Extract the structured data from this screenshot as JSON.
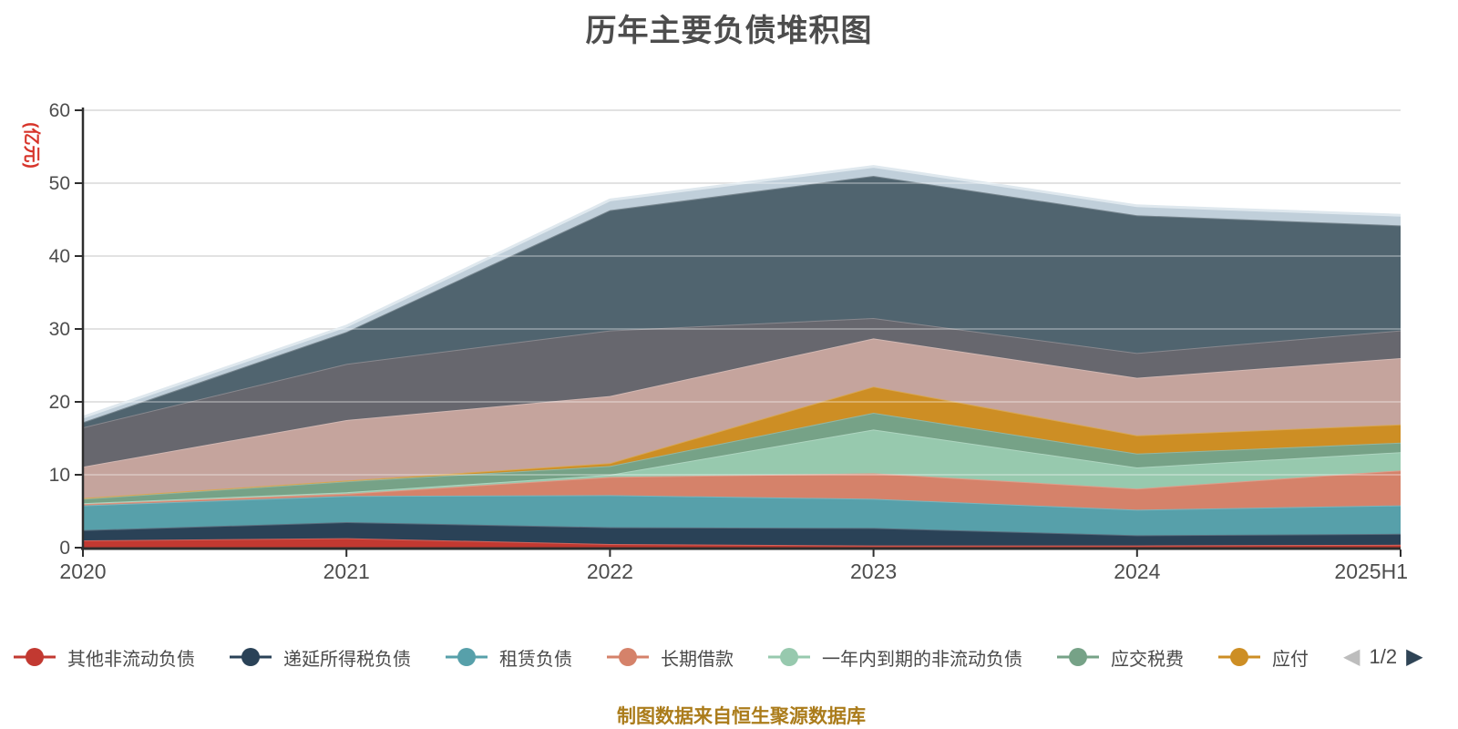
{
  "title": "历年主要负债堆积图",
  "y_axis": {
    "name": "(亿元)",
    "name_color": "#d7342a",
    "tick_labels": [
      "0",
      "10",
      "20",
      "30",
      "40",
      "50",
      "60"
    ],
    "tick_values": [
      0,
      10,
      20,
      30,
      40,
      50,
      60
    ],
    "max": 60
  },
  "x_axis": {
    "categories": [
      "2020",
      "2021",
      "2022",
      "2023",
      "2024",
      "2025H1"
    ]
  },
  "legend": {
    "prev_icon": "◀",
    "next_icon": "▶",
    "page_indicator": "1/2",
    "prev_color": "#bdbdbd",
    "next_color": "#2f4456"
  },
  "footer": {
    "text": "制图数据来自恒生聚源数据库",
    "color": "#ab7c1b"
  },
  "chart_data": {
    "type": "area",
    "stacked": true,
    "title": "历年主要负债堆积图",
    "ylabel": "(亿元)",
    "ylim": [
      0,
      60
    ],
    "grid": true,
    "legend_position": "bottom",
    "categories": [
      "2020",
      "2021",
      "2022",
      "2023",
      "2024",
      "2025H1"
    ],
    "totals": [
      17.9,
      30.4,
      47.7,
      52.3,
      46.9,
      45.6
    ],
    "series": [
      {
        "label": "其他非流动负债",
        "legend_page": 1,
        "color": "#c23931",
        "values": [
          1.0,
          1.3,
          0.5,
          0.3,
          0.3,
          0.4
        ]
      },
      {
        "label": "递延所得税负债",
        "legend_page": 1,
        "color": "#2a4257",
        "values": [
          1.4,
          2.2,
          2.3,
          2.4,
          1.4,
          1.5
        ]
      },
      {
        "label": "租赁负债",
        "legend_page": 1,
        "color": "#57a0aa",
        "values": [
          3.4,
          3.6,
          4.4,
          4.0,
          3.5,
          3.9
        ]
      },
      {
        "label": "长期借款",
        "legend_page": 1,
        "color": "#d5826a",
        "values": [
          0.2,
          0.3,
          2.5,
          3.5,
          2.9,
          4.8
        ]
      },
      {
        "label": "一年内到期的非流动负债",
        "legend_page": 1,
        "color": "#97c9ae",
        "values": [
          0.1,
          0.2,
          0.3,
          6.0,
          2.9,
          2.5
        ]
      },
      {
        "label": "应交税费",
        "legend_page": 1,
        "color": "#76a287",
        "values": [
          0.6,
          1.5,
          1.2,
          2.3,
          1.9,
          1.3
        ]
      },
      {
        "label": "应付",
        "legend_page": 1,
        "truncated": true,
        "color": "#cd8e24",
        "values": [
          0.1,
          0.1,
          0.4,
          3.6,
          2.5,
          2.5
        ]
      },
      {
        "label": "",
        "legend_page": 2,
        "color": "#c5a49d",
        "values": [
          4.3,
          8.3,
          9.2,
          6.6,
          7.9,
          9.1
        ]
      },
      {
        "label": "",
        "legend_page": 2,
        "color": "#67676e",
        "values": [
          5.4,
          7.7,
          9.0,
          2.8,
          3.4,
          3.8
        ]
      },
      {
        "label": "",
        "legend_page": 2,
        "color": "#50646f",
        "values": [
          0.7,
          4.4,
          16.5,
          19.5,
          18.9,
          14.4
        ]
      },
      {
        "label": "",
        "legend_page": 2,
        "color": "#c0cfda",
        "values": [
          0.7,
          0.8,
          1.4,
          1.3,
          1.3,
          1.4
        ]
      }
    ]
  }
}
